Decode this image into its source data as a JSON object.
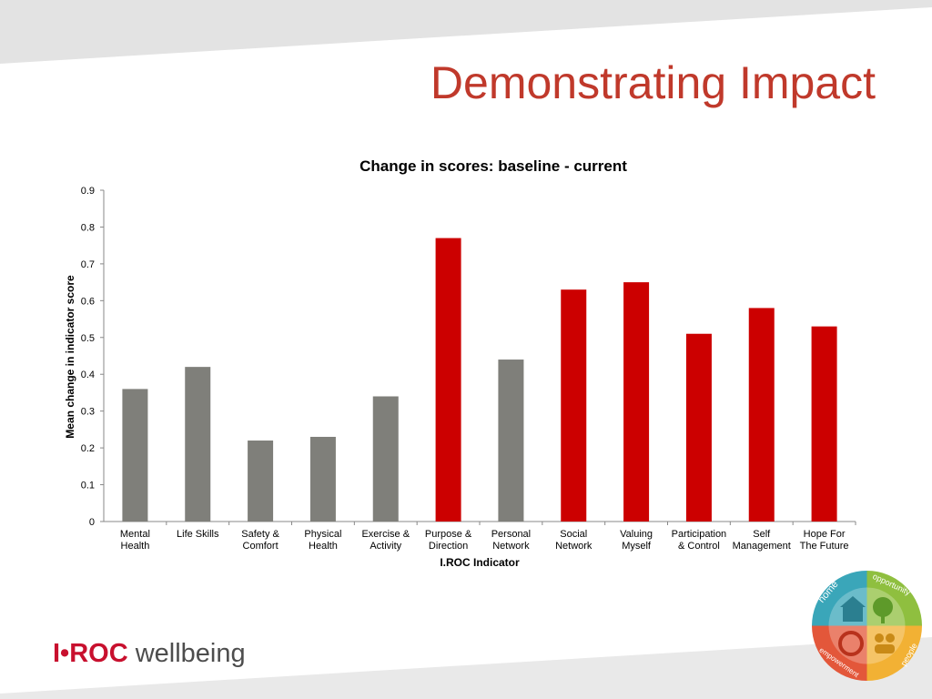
{
  "slide": {
    "title": "Demonstrating Impact"
  },
  "logo": {
    "brand": "I•ROC",
    "product": "wellbeing",
    "wheel_words": [
      "home",
      "opportunity",
      "empowerment",
      "people"
    ]
  },
  "colors": {
    "title": "#c0392b",
    "bar_gray": "#7f7f7a",
    "bar_red": "#cc0000"
  },
  "chart_data": {
    "type": "bar",
    "title": "Change in scores: baseline - current",
    "xlabel": "I.ROC Indicator",
    "ylabel": "Mean change in indicator score",
    "ylim": [
      0,
      0.9
    ],
    "yticks": [
      "0",
      "0.1",
      "0.2",
      "0.3",
      "0.4",
      "0.5",
      "0.6",
      "0.7",
      "0.8",
      "0.9"
    ],
    "grid": false,
    "categories": [
      [
        "Mental",
        "Health"
      ],
      [
        "Life Skills"
      ],
      [
        "Safety &",
        "Comfort"
      ],
      [
        "Physical",
        "Health"
      ],
      [
        "Exercise &",
        "Activity"
      ],
      [
        "Purpose &",
        "Direction"
      ],
      [
        "Personal",
        "Network"
      ],
      [
        "Social",
        "Network"
      ],
      [
        "Valuing",
        "Myself"
      ],
      [
        "Participation",
        "& Control"
      ],
      [
        "Self",
        "Management"
      ],
      [
        "Hope For",
        "The Future"
      ]
    ],
    "values": [
      0.36,
      0.42,
      0.22,
      0.23,
      0.34,
      0.77,
      0.44,
      0.63,
      0.65,
      0.51,
      0.58,
      0.53
    ],
    "bar_colors": [
      "gray",
      "gray",
      "gray",
      "gray",
      "gray",
      "red",
      "gray",
      "red",
      "red",
      "red",
      "red",
      "red"
    ]
  }
}
